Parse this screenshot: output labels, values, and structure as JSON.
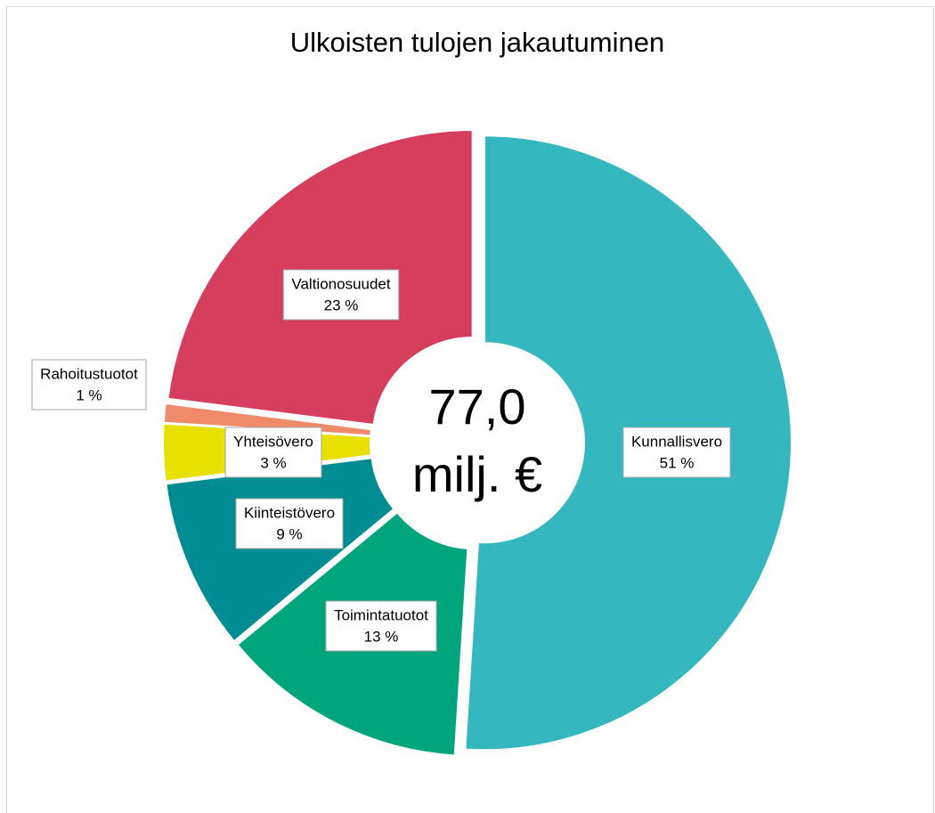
{
  "chart_data": {
    "type": "donut",
    "title": "Ulkoisten tulojen jakautuminen",
    "center_label": [
      "77,0",
      "milj. €"
    ],
    "categories": [
      "Kunnallisvero",
      "Toimintatuotot",
      "Kiinteistövero",
      "Yhteisövero",
      "Rahoitustuotot",
      "Valtionosuudet"
    ],
    "values": [
      51,
      13,
      9,
      3,
      1,
      23
    ],
    "value_labels": [
      "51 %",
      "13 %",
      "9 %",
      "3 %",
      "1 %",
      "23 %"
    ],
    "colors": [
      "#35b7bf",
      "#00a57e",
      "#008c93",
      "#e8e000",
      "#ef8a6b",
      "#d63e5e"
    ]
  }
}
